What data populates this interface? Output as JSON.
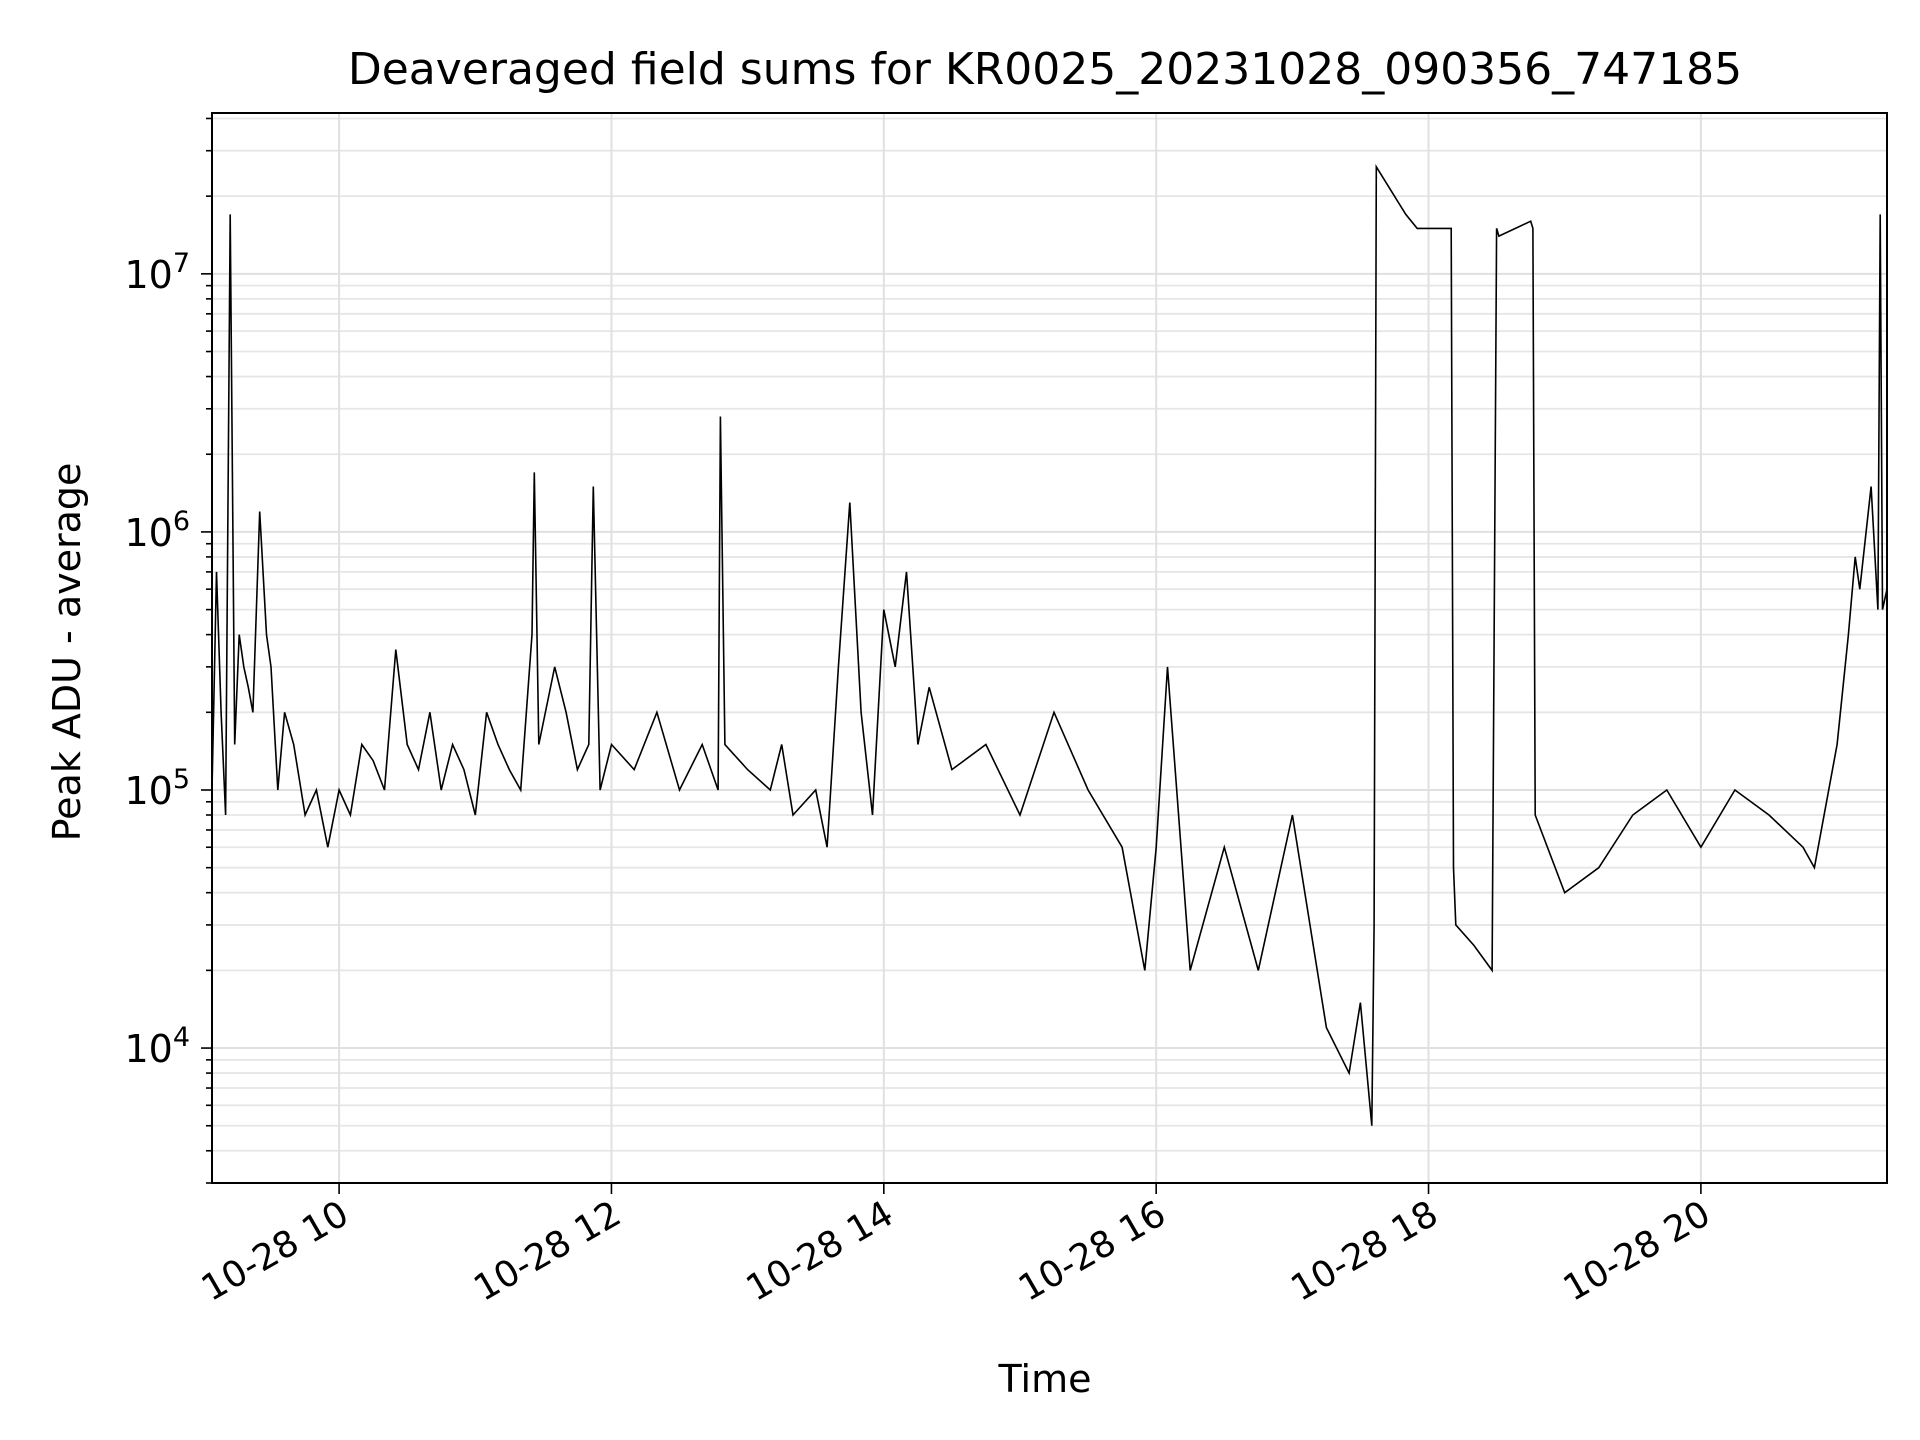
{
  "chart_data": {
    "type": "line",
    "title": "Deaveraged field sums for KR0025_20231028_090356_747185",
    "xlabel": "Time",
    "ylabel": "Peak ADU - average",
    "x_is_time": true,
    "date_prefix": "2023-10-28",
    "xlim": [
      "09:04",
      "21:22"
    ],
    "ylim": [
      3000,
      42000000
    ],
    "yscale": "log",
    "grid": true,
    "line_color": "#000000",
    "x_ticks": [
      {
        "time": "10:00",
        "label": "10-28 10"
      },
      {
        "time": "12:00",
        "label": "10-28 12"
      },
      {
        "time": "14:00",
        "label": "10-28 14"
      },
      {
        "time": "16:00",
        "label": "10-28 16"
      },
      {
        "time": "18:00",
        "label": "10-28 18"
      },
      {
        "time": "20:00",
        "label": "10-28 20"
      }
    ],
    "y_ticks": [
      {
        "value": 10000,
        "label": "10^4"
      },
      {
        "value": 100000,
        "label": "10^5"
      },
      {
        "value": 1000000,
        "label": "10^6"
      },
      {
        "value": 10000000,
        "label": "10^7"
      }
    ],
    "series": [
      {
        "x": [
          "09:04",
          "09:06",
          "09:08",
          "09:10",
          "09:12",
          "09:14",
          "09:16",
          "09:18",
          "09:20",
          "09:22",
          "09:25",
          "09:28",
          "09:30",
          "09:33",
          "09:36",
          "09:40",
          "09:45",
          "09:50",
          "09:55",
          "10:00",
          "10:05",
          "10:10",
          "10:15",
          "10:20",
          "10:25",
          "10:30",
          "10:35",
          "10:40",
          "10:45",
          "10:50",
          "10:55",
          "11:00",
          "11:05",
          "11:10",
          "11:15",
          "11:20",
          "11:25",
          "11:26",
          "11:28",
          "11:35",
          "11:40",
          "11:45",
          "11:50",
          "11:52",
          "11:55",
          "12:00",
          "12:10",
          "12:20",
          "12:30",
          "12:40",
          "12:47",
          "12:48",
          "12:50",
          "13:00",
          "13:10",
          "13:15",
          "13:20",
          "13:30",
          "13:35",
          "13:40",
          "13:45",
          "13:50",
          "13:55",
          "14:00",
          "14:05",
          "14:10",
          "14:15",
          "14:20",
          "14:30",
          "14:45",
          "15:00",
          "15:15",
          "15:30",
          "15:45",
          "15:55",
          "16:00",
          "16:05",
          "16:15",
          "16:30",
          "16:45",
          "17:00",
          "17:15",
          "17:25",
          "17:30",
          "17:35",
          "17:36",
          "17:37",
          "17:45",
          "17:50",
          "17:55",
          "18:00",
          "18:10",
          "18:11",
          "18:12",
          "18:20",
          "18:28",
          "18:30",
          "18:31",
          "18:45",
          "18:46",
          "18:47",
          "19:00",
          "19:15",
          "19:30",
          "19:45",
          "20:00",
          "20:15",
          "20:30",
          "20:45",
          "20:50",
          "21:00",
          "21:05",
          "21:08",
          "21:10",
          "21:15",
          "21:18",
          "21:19",
          "21:20",
          "21:22"
        ],
        "y": [
          100000,
          700000,
          200000,
          80000,
          17000000,
          150000,
          400000,
          300000,
          250000,
          200000,
          1200000,
          400000,
          300000,
          100000,
          200000,
          150000,
          80000,
          100000,
          60000,
          100000,
          80000,
          150000,
          130000,
          100000,
          350000,
          150000,
          120000,
          200000,
          100000,
          150000,
          120000,
          80000,
          200000,
          150000,
          120000,
          100000,
          400000,
          1700000,
          150000,
          300000,
          200000,
          120000,
          150000,
          1500000,
          100000,
          150000,
          120000,
          200000,
          100000,
          150000,
          100000,
          2800000,
          150000,
          120000,
          100000,
          150000,
          80000,
          100000,
          60000,
          300000,
          1300000,
          200000,
          80000,
          500000,
          300000,
          700000,
          150000,
          250000,
          120000,
          150000,
          80000,
          200000,
          100000,
          60000,
          20000,
          60000,
          300000,
          20000,
          60000,
          20000,
          80000,
          12000,
          8000,
          15000,
          5000,
          30000,
          26000000,
          20000000,
          17000000,
          15000000,
          15000000,
          15000000,
          50000,
          30000,
          25000,
          20000,
          15000000,
          14000000,
          16000000,
          15000000,
          80000,
          40000,
          50000,
          80000,
          100000,
          60000,
          100000,
          80000,
          60000,
          50000,
          150000,
          400000,
          800000,
          600000,
          1500000,
          500000,
          17000000,
          500000,
          600000
        ]
      }
    ]
  }
}
